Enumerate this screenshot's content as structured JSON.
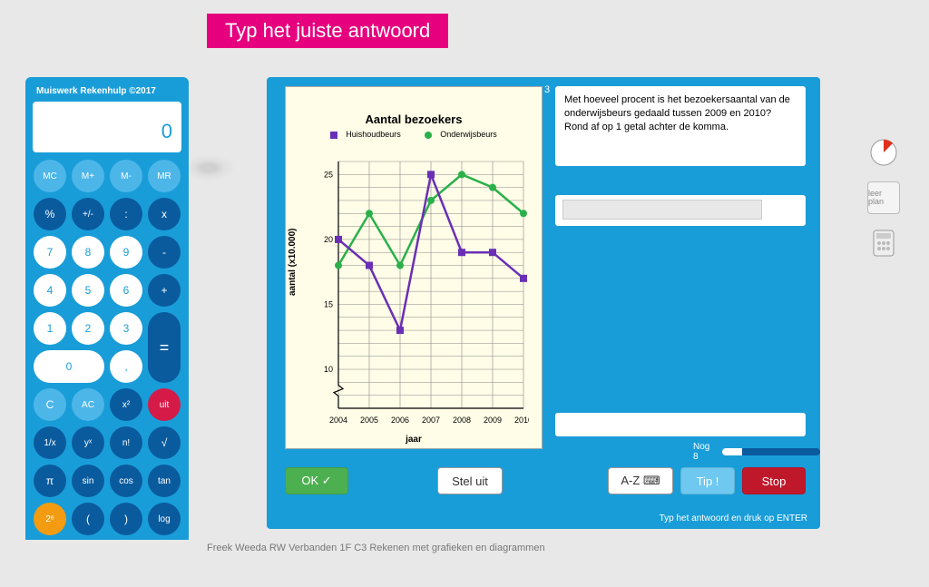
{
  "header": {
    "title": "Typ het juiste antwoord"
  },
  "calculator": {
    "title": "Muiswerk Rekenhulp ©2017",
    "display": "0",
    "buttons": {
      "mc": "MC",
      "mp": "M+",
      "mm": "M-",
      "mr": "MR",
      "pct": "%",
      "pm": "+/-",
      "div": ":",
      "mul": "x",
      "b7": "7",
      "b8": "8",
      "b9": "9",
      "sub": "-",
      "b4": "4",
      "b5": "5",
      "b6": "6",
      "add": "+",
      "b1": "1",
      "b2": "2",
      "b3": "3",
      "eq": "=",
      "b0": "0",
      "comma": ",",
      "c": "C",
      "ac": "AC",
      "x2": "x²",
      "uit": "uit",
      "inv": "1/x",
      "yx": "yˣ",
      "nfac": "n!",
      "sqrt": "√",
      "pi": "π",
      "sin": "sin",
      "cos": "cos",
      "tan": "tan",
      "twoe": "2ᵉ",
      "lp": "(",
      "rp": ")",
      "log": "log"
    }
  },
  "chart": {
    "title": "Aantal bezoekers",
    "ylabel": "aantal (x10.000)",
    "xlabel": "jaar",
    "legend": {
      "s1": "Huishoudbeurs",
      "s2": "Onderwijsbeurs"
    },
    "colors": {
      "s1": "#6a2fb5",
      "s2": "#2bb04a",
      "grid": "#888",
      "bg": "#fffde7"
    },
    "xticks": [
      "2004",
      "2005",
      "2006",
      "2007",
      "2008",
      "2009",
      "2010"
    ],
    "yticks": [
      10,
      15,
      20,
      25
    ],
    "ylim": [
      7,
      26
    ],
    "series1_y": [
      20,
      18,
      13,
      25,
      19,
      19,
      17
    ],
    "series2_y": [
      18,
      22,
      18,
      23,
      25,
      24,
      22
    ]
  },
  "question": {
    "number": "3",
    "text": "Met hoeveel procent is het bezoekersaantal van de onderwijsbeurs gedaald tussen 2009 en 2010? Rond af op 1 getal achter de komma."
  },
  "progress": {
    "label": "Nog 8",
    "pct": 20
  },
  "buttons": {
    "ok": "OK ✓",
    "stel": "Stel uit",
    "az": "A-Z ⌨",
    "tip": "Tip !",
    "stop": "Stop"
  },
  "hint": "Typ het antwoord en druk op ENTER",
  "footer": "Freek Weeda   RW Verbanden 1F   C3 Rekenen met grafieken en diagrammen",
  "side": {
    "leerplan": "leer plan"
  }
}
